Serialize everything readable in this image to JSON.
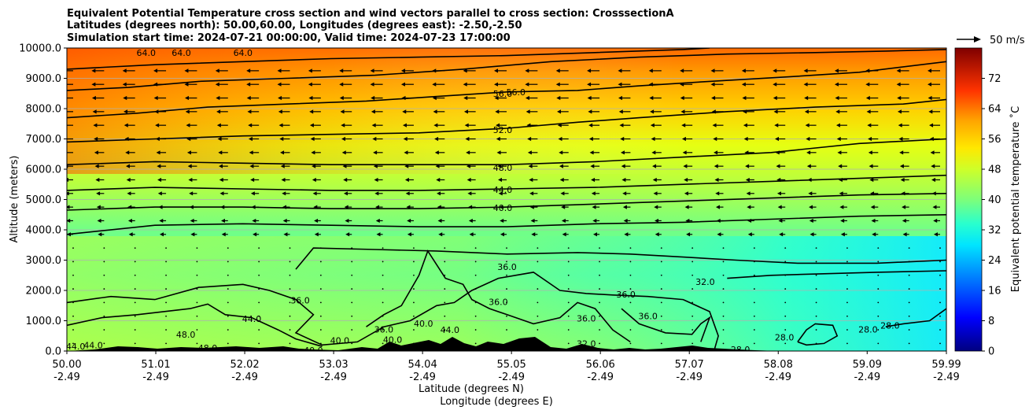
{
  "chart_data": {
    "type": "contour",
    "title_lines": [
      "Equivalent Potential Temperature cross section and wind vectors parallel to cross section: CrosssectionA",
      "Latitudes (degrees north): 50.00,60.00, Longitudes (degrees east): -2.50,-2.50",
      "Simulation start time: 2024-07-21 00:00:00, Valid time: 2024-07-23 17:00:00"
    ],
    "xlabel_lat": "Latitude (degrees N)",
    "xlabel_lon": "Longitude (degrees E)",
    "ylabel": "Altitude (meters)",
    "xlim": [
      50.0,
      59.99
    ],
    "ylim": [
      0,
      10000
    ],
    "x_ticks": [
      {
        "lat": "50.00",
        "lon": "-2.49"
      },
      {
        "lat": "51.01",
        "lon": "-2.49"
      },
      {
        "lat": "52.02",
        "lon": "-2.49"
      },
      {
        "lat": "53.03",
        "lon": "-2.49"
      },
      {
        "lat": "54.04",
        "lon": "-2.49"
      },
      {
        "lat": "55.05",
        "lon": "-2.49"
      },
      {
        "lat": "56.06",
        "lon": "-2.49"
      },
      {
        "lat": "57.07",
        "lon": "-2.49"
      },
      {
        "lat": "58.08",
        "lon": "-2.49"
      },
      {
        "lat": "59.09",
        "lon": "-2.49"
      },
      {
        "lat": "59.99",
        "lon": "-2.49"
      }
    ],
    "y_ticks": [
      "0.0",
      "1000.0",
      "2000.0",
      "3000.0",
      "4000.0",
      "5000.0",
      "6000.0",
      "7000.0",
      "8000.0",
      "9000.0",
      "10000.0"
    ],
    "grid": "horizontal",
    "colorbar": {
      "label": "Equivalent potential temperature $^\\circ$C",
      "label_display": "Equivalent potential temperature ˚C",
      "range": [
        0,
        80
      ],
      "ticks": [
        "0",
        "8",
        "16",
        "24",
        "32",
        "40",
        "48",
        "56",
        "64",
        "72"
      ],
      "colormap": "jet"
    },
    "quiver_key": {
      "label": "50 m/s"
    },
    "contour_labels": [
      {
        "text": "64.0",
        "x": 50.9,
        "y": 9850
      },
      {
        "text": "64.0",
        "x": 51.3,
        "y": 9850
      },
      {
        "text": "64.0",
        "x": 52.0,
        "y": 9850
      },
      {
        "text": "56.0",
        "x": 54.95,
        "y": 8500
      },
      {
        "text": "56.0",
        "x": 55.1,
        "y": 8550
      },
      {
        "text": "52.0",
        "x": 54.95,
        "y": 7300
      },
      {
        "text": "48.0",
        "x": 54.95,
        "y": 6050
      },
      {
        "text": "44.0",
        "x": 54.95,
        "y": 5320
      },
      {
        "text": "40.0",
        "x": 54.95,
        "y": 4730
      },
      {
        "text": "36.0",
        "x": 55.0,
        "y": 2780
      },
      {
        "text": "36.0",
        "x": 54.9,
        "y": 1620
      },
      {
        "text": "36.0",
        "x": 53.6,
        "y": 720
      },
      {
        "text": "40.0",
        "x": 54.05,
        "y": 910
      },
      {
        "text": "36.0",
        "x": 52.65,
        "y": 1670
      },
      {
        "text": "44.0",
        "x": 52.1,
        "y": 1060
      },
      {
        "text": "36.0",
        "x": 56.35,
        "y": 1870
      },
      {
        "text": "36.0",
        "x": 56.6,
        "y": 1150
      },
      {
        "text": "36.0",
        "x": 55.9,
        "y": 1080
      },
      {
        "text": "32.0",
        "x": 57.25,
        "y": 2280
      },
      {
        "text": "28.0",
        "x": 57.65,
        "y": 50
      },
      {
        "text": "28.0",
        "x": 58.15,
        "y": 450
      },
      {
        "text": "28.0",
        "x": 59.1,
        "y": 720
      },
      {
        "text": "28.0",
        "x": 59.35,
        "y": 850
      },
      {
        "text": "44.0",
        "x": 50.1,
        "y": 150
      },
      {
        "text": "44.0",
        "x": 50.3,
        "y": 200
      },
      {
        "text": "48.0",
        "x": 51.35,
        "y": 550
      },
      {
        "text": "48.0",
        "x": 51.6,
        "y": 100
      },
      {
        "text": "40.0",
        "x": 52.8,
        "y": 30
      },
      {
        "text": "40.0",
        "x": 53.1,
        "y": 350
      },
      {
        "text": "40.0",
        "x": 53.7,
        "y": 380
      },
      {
        "text": "44.0",
        "x": 54.35,
        "y": 700
      },
      {
        "text": "32.0",
        "x": 55.9,
        "y": 250
      }
    ]
  },
  "colors": {
    "contour": "#000000",
    "terrain": "#000000"
  }
}
